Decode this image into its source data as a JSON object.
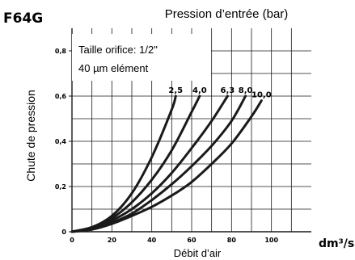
{
  "chart_data": {
    "type": "line",
    "model": "F64G",
    "title": "Pression d’entrée (bar)",
    "xlabel": "Débit d’air",
    "xunit": "dm³/s",
    "ylabel": "Chute de pression",
    "yunit": "bar",
    "xlim": [
      0,
      120
    ],
    "ylim": [
      0,
      0.9
    ],
    "x_ticks": [
      {
        "value": 0,
        "label": "0"
      },
      {
        "value": 20,
        "label": "20"
      },
      {
        "value": 40,
        "label": "40"
      },
      {
        "value": 60,
        "label": "60"
      },
      {
        "value": 80,
        "label": "80"
      },
      {
        "value": 100,
        "label": "100"
      }
    ],
    "y_ticks": [
      {
        "value": 0,
        "label": "0"
      },
      {
        "value": 0.2,
        "label": "0,2"
      },
      {
        "value": 0.4,
        "label": "0,4"
      },
      {
        "value": 0.6,
        "label": "0,6"
      },
      {
        "value": 0.8,
        "label": "0,8"
      }
    ],
    "grid": true,
    "annotations": [
      "Taille orifice: 1/2\"",
      "40 µm elément"
    ],
    "series": [
      {
        "name": "2,5",
        "x": [
          0,
          10,
          20,
          30,
          40,
          50,
          52
        ],
        "y": [
          0,
          0.02,
          0.07,
          0.17,
          0.33,
          0.54,
          0.6
        ]
      },
      {
        "name": "4,0",
        "x": [
          0,
          10,
          20,
          30,
          40,
          50,
          60,
          64
        ],
        "y": [
          0,
          0.02,
          0.06,
          0.13,
          0.23,
          0.36,
          0.53,
          0.6
        ]
      },
      {
        "name": "6,3",
        "x": [
          0,
          10,
          20,
          30,
          40,
          50,
          60,
          70,
          78
        ],
        "y": [
          0,
          0.015,
          0.05,
          0.1,
          0.17,
          0.26,
          0.37,
          0.49,
          0.6
        ]
      },
      {
        "name": "8,0",
        "x": [
          0,
          10,
          20,
          30,
          40,
          50,
          60,
          70,
          80,
          87
        ],
        "y": [
          0,
          0.012,
          0.04,
          0.08,
          0.14,
          0.21,
          0.29,
          0.38,
          0.49,
          0.6
        ]
      },
      {
        "name": "10,0",
        "x": [
          0,
          10,
          20,
          30,
          40,
          50,
          60,
          70,
          80,
          90,
          95
        ],
        "y": [
          0,
          0.01,
          0.035,
          0.07,
          0.11,
          0.16,
          0.22,
          0.3,
          0.39,
          0.51,
          0.58
        ]
      }
    ]
  },
  "colors": {
    "line": "#1a1a1a",
    "grid": "#1a1a1a",
    "background": "#ffffff"
  }
}
